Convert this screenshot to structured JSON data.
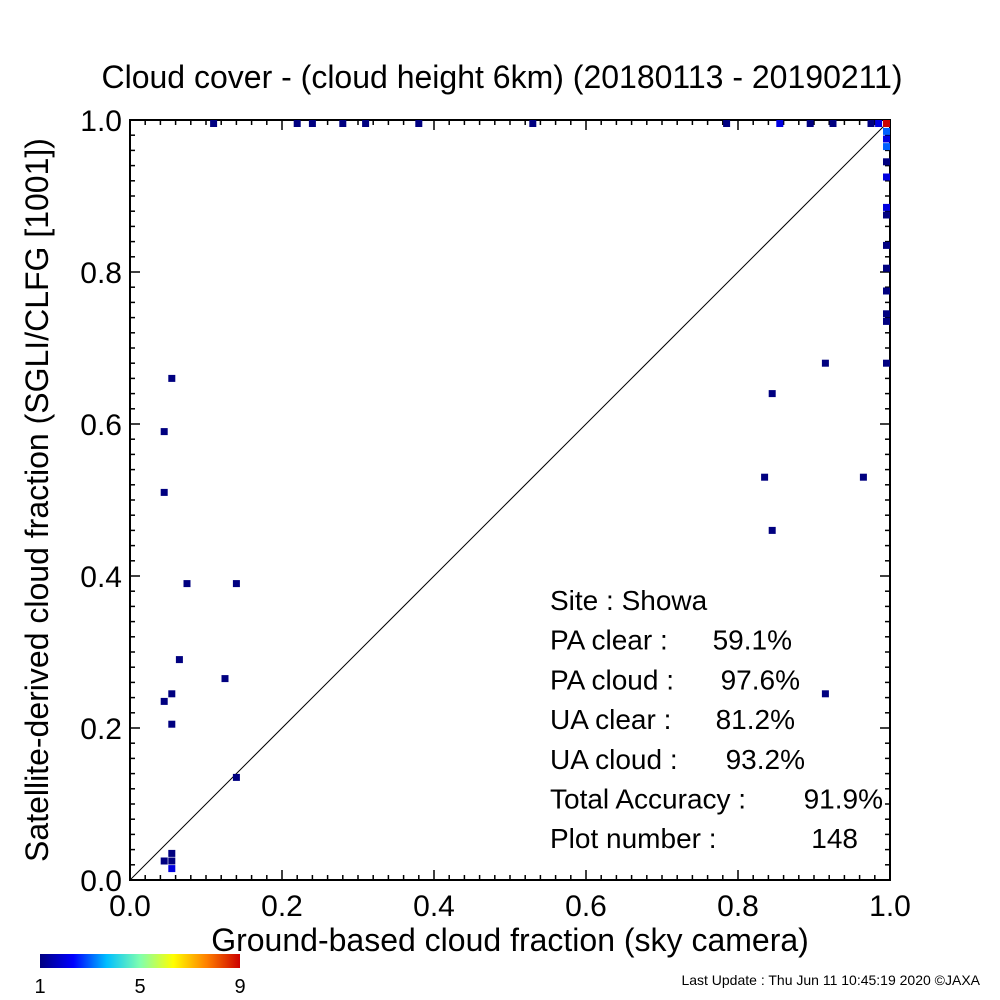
{
  "chart_data": {
    "type": "scatter",
    "title": "Cloud cover - (cloud height 6km)  (20180113 - 20190211)",
    "xlabel": "Ground-based cloud fraction (sky camera)",
    "ylabel": "Satellite-derived cloud fraction (SGLI/CLFG [1001])",
    "xlim": [
      0.0,
      1.0
    ],
    "ylim": [
      0.0,
      1.0
    ],
    "x_ticks": [
      "0.0",
      "0.2",
      "0.4",
      "0.6",
      "0.8",
      "1.0"
    ],
    "y_ticks": [
      "0.0",
      "0.2",
      "0.4",
      "0.6",
      "0.8",
      "1.0"
    ],
    "grid": false,
    "reference_line": "y = x",
    "colorbar": {
      "ticks": [
        "1",
        "5",
        "9"
      ],
      "range": [
        1,
        9
      ],
      "colors": [
        "#000080",
        "#0000ff",
        "#00bfff",
        "#7fffaf",
        "#ffff00",
        "#ff8000",
        "#cc0000"
      ]
    },
    "points": [
      {
        "x": 0.11,
        "y": 0.997,
        "count": 1
      },
      {
        "x": 0.22,
        "y": 0.997,
        "count": 1
      },
      {
        "x": 0.24,
        "y": 0.997,
        "count": 1
      },
      {
        "x": 0.28,
        "y": 0.997,
        "count": 1
      },
      {
        "x": 0.31,
        "y": 0.997,
        "count": 1
      },
      {
        "x": 0.38,
        "y": 0.997,
        "count": 1
      },
      {
        "x": 0.53,
        "y": 0.997,
        "count": 1
      },
      {
        "x": 0.785,
        "y": 0.997,
        "count": 1
      },
      {
        "x": 0.855,
        "y": 0.997,
        "count": 2
      },
      {
        "x": 0.895,
        "y": 0.997,
        "count": 1
      },
      {
        "x": 0.925,
        "y": 0.997,
        "count": 1
      },
      {
        "x": 0.975,
        "y": 0.997,
        "count": 1
      },
      {
        "x": 0.985,
        "y": 0.997,
        "count": 2
      },
      {
        "x": 0.997,
        "y": 0.997,
        "count": 9
      },
      {
        "x": 0.997,
        "y": 0.985,
        "count": 3
      },
      {
        "x": 0.997,
        "y": 0.975,
        "count": 2
      },
      {
        "x": 0.997,
        "y": 0.965,
        "count": 3
      },
      {
        "x": 0.997,
        "y": 0.945,
        "count": 1
      },
      {
        "x": 0.997,
        "y": 0.925,
        "count": 2
      },
      {
        "x": 0.997,
        "y": 0.885,
        "count": 2
      },
      {
        "x": 0.997,
        "y": 0.875,
        "count": 1
      },
      {
        "x": 0.997,
        "y": 0.835,
        "count": 1
      },
      {
        "x": 0.997,
        "y": 0.805,
        "count": 1
      },
      {
        "x": 0.997,
        "y": 0.775,
        "count": 1
      },
      {
        "x": 0.997,
        "y": 0.745,
        "count": 1
      },
      {
        "x": 0.997,
        "y": 0.735,
        "count": 1
      },
      {
        "x": 0.997,
        "y": 0.68,
        "count": 1
      },
      {
        "x": 0.915,
        "y": 0.68,
        "count": 1
      },
      {
        "x": 0.845,
        "y": 0.64,
        "count": 1
      },
      {
        "x": 0.835,
        "y": 0.53,
        "count": 1
      },
      {
        "x": 0.965,
        "y": 0.53,
        "count": 1
      },
      {
        "x": 0.845,
        "y": 0.46,
        "count": 1
      },
      {
        "x": 0.915,
        "y": 0.245,
        "count": 1
      },
      {
        "x": 0.055,
        "y": 0.66,
        "count": 1
      },
      {
        "x": 0.045,
        "y": 0.59,
        "count": 1
      },
      {
        "x": 0.045,
        "y": 0.51,
        "count": 1
      },
      {
        "x": 0.075,
        "y": 0.39,
        "count": 1
      },
      {
        "x": 0.14,
        "y": 0.39,
        "count": 1
      },
      {
        "x": 0.065,
        "y": 0.29,
        "count": 1
      },
      {
        "x": 0.125,
        "y": 0.265,
        "count": 1
      },
      {
        "x": 0.055,
        "y": 0.245,
        "count": 1
      },
      {
        "x": 0.045,
        "y": 0.235,
        "count": 1
      },
      {
        "x": 0.055,
        "y": 0.205,
        "count": 1
      },
      {
        "x": 0.14,
        "y": 0.135,
        "count": 1
      },
      {
        "x": 0.055,
        "y": 0.035,
        "count": 1
      },
      {
        "x": 0.045,
        "y": 0.025,
        "count": 1
      },
      {
        "x": 0.055,
        "y": 0.025,
        "count": 1
      },
      {
        "x": 0.055,
        "y": 0.015,
        "count": 2
      }
    ]
  },
  "stats": [
    {
      "label": "Site : Showa",
      "value": ""
    },
    {
      "label": "PA clear :",
      "value": "59.1%"
    },
    {
      "label": "PA cloud :",
      "value": "97.6%"
    },
    {
      "label": "UA clear :",
      "value": "81.2%"
    },
    {
      "label": "UA cloud :",
      "value": "93.2%"
    },
    {
      "label": "Total Accuracy :",
      "value": "91.9%"
    },
    {
      "label": "Plot number :",
      "value": "148"
    }
  ],
  "footer": {
    "text": "Last Update : Thu Jun 11 10:45:19 2020  ©JAXA"
  }
}
